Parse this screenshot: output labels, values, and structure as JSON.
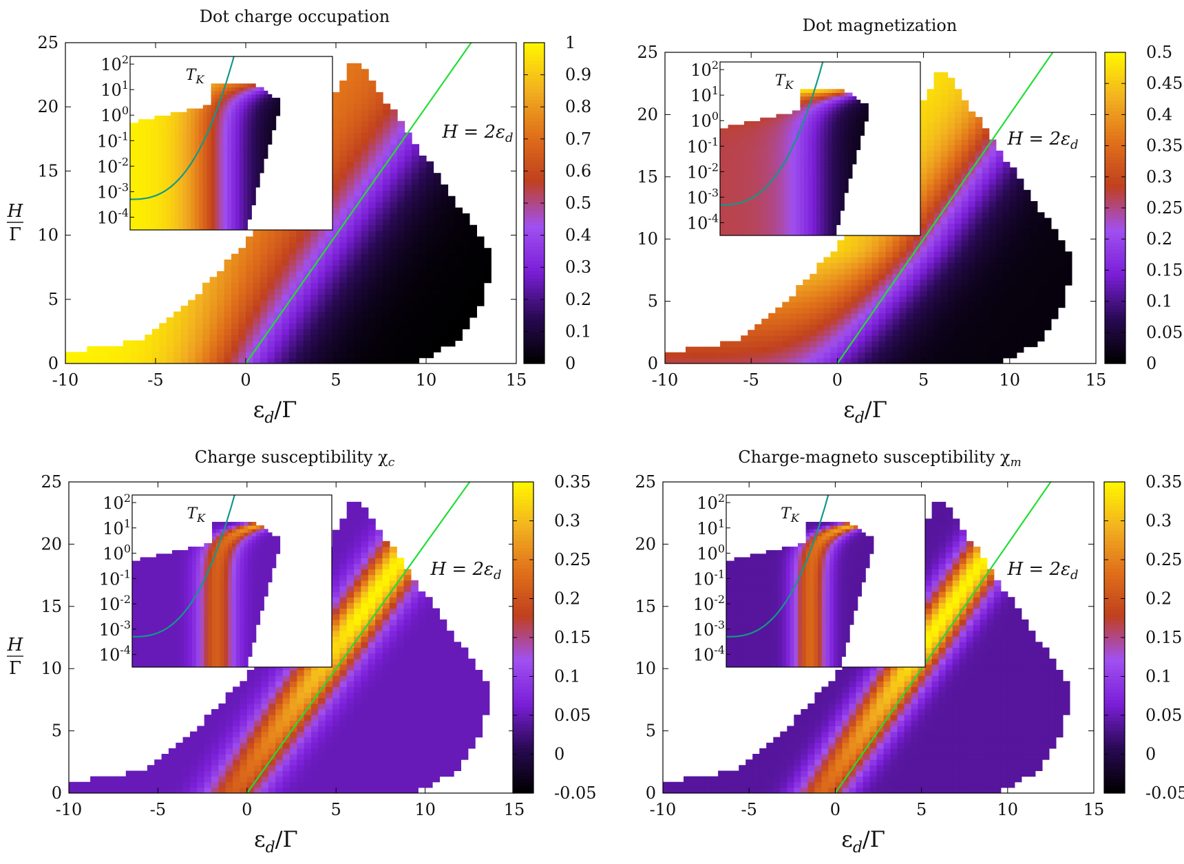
{
  "figure": {
    "colors": {
      "line_green": "#22dd33",
      "tk_teal": "#119988",
      "frame": "#000000"
    },
    "colormap": [
      "#000000",
      "#2a0a55",
      "#7b1fd8",
      "#a050f0",
      "#c0401e",
      "#e0701a",
      "#f2b020",
      "#fff400"
    ],
    "annotation_label": "H = 2ε",
    "annotation_subscript": "d",
    "inset_curve_label": "T",
    "inset_curve_subscript": "K"
  },
  "chart_data": [
    {
      "type": "heatmap",
      "title": "Dot charge occupation",
      "xlabel": "ε",
      "xlabel_sub": "d",
      "xlabel_tail": "/Γ",
      "ylabel_num": "H",
      "ylabel_den": "Γ",
      "xlim": [
        -10,
        15
      ],
      "ylim": [
        0,
        25
      ],
      "xticks": [
        "-10",
        "-5",
        "0",
        "5",
        "10",
        "15"
      ],
      "yticks": [
        "0",
        "5",
        "10",
        "15",
        "20",
        "25"
      ],
      "inset_yticks": [
        "10-4",
        "10-3",
        "10-2",
        "10-1",
        "100",
        "101",
        "102"
      ],
      "inset_ytick_base": "10",
      "inset_ytick_exps": [
        "-4",
        "-3",
        "-2",
        "-1",
        "0",
        "1",
        "2"
      ],
      "colorbar_ticks": [
        "0",
        "0.1",
        "0.2",
        "0.3",
        "0.4",
        "0.5",
        "0.6",
        "0.7",
        "0.8",
        "0.9",
        "1"
      ],
      "colorbar_range": [
        0,
        1
      ],
      "field": "occupation",
      "line": {
        "label": "H = 2ε_d",
        "x": [
          0,
          12.5
        ],
        "y": [
          0,
          25
        ]
      }
    },
    {
      "type": "heatmap",
      "title": "Dot magnetization",
      "xlabel": "ε",
      "xlabel_sub": "d",
      "xlabel_tail": "/Γ",
      "ylabel_num": "H",
      "ylabel_den": "Γ",
      "xlim": [
        -10,
        15
      ],
      "ylim": [
        0,
        25
      ],
      "xticks": [
        "-10",
        "-5",
        "0",
        "5",
        "10",
        "15"
      ],
      "yticks": [
        "0",
        "5",
        "10",
        "15",
        "20",
        "25"
      ],
      "inset_ytick_base": "10",
      "inset_ytick_exps": [
        "-4",
        "-3",
        "-2",
        "-1",
        "0",
        "1",
        "2"
      ],
      "colorbar_ticks": [
        "0",
        "0.05",
        "0.1",
        "0.15",
        "0.2",
        "0.25",
        "0.3",
        "0.35",
        "0.4",
        "0.45",
        "0.5"
      ],
      "colorbar_range": [
        0,
        0.5
      ],
      "field": "magnetization",
      "line": {
        "label": "H = 2ε_d",
        "x": [
          0,
          12.5
        ],
        "y": [
          0,
          25
        ]
      }
    },
    {
      "type": "heatmap",
      "title": "Charge susceptibility χ",
      "title_sub": "c",
      "xlabel": "ε",
      "xlabel_sub": "d",
      "xlabel_tail": "/Γ",
      "ylabel_num": "H",
      "ylabel_den": "Γ",
      "xlim": [
        -10,
        15
      ],
      "ylim": [
        0,
        25
      ],
      "xticks": [
        "-10",
        "-5",
        "0",
        "5",
        "10",
        "15"
      ],
      "yticks": [
        "0",
        "5",
        "10",
        "15",
        "20",
        "25"
      ],
      "inset_ytick_base": "10",
      "inset_ytick_exps": [
        "-4",
        "-3",
        "-2",
        "-1",
        "0",
        "1",
        "2"
      ],
      "colorbar_ticks": [
        "-0.05",
        "0",
        "0.05",
        "0.1",
        "0.15",
        "0.2",
        "0.25",
        "0.3",
        "0.35"
      ],
      "colorbar_range": [
        -0.05,
        0.35
      ],
      "field": "chi_c",
      "line": {
        "label": "H = 2ε_d",
        "x": [
          0,
          12.5
        ],
        "y": [
          0,
          25
        ]
      }
    },
    {
      "type": "heatmap",
      "title": "Charge-magneto susceptibility χ",
      "title_sub": "m",
      "xlabel": "ε",
      "xlabel_sub": "d",
      "xlabel_tail": "/Γ",
      "ylabel_num": "H",
      "ylabel_den": "Γ",
      "xlim": [
        -10,
        15
      ],
      "ylim": [
        0,
        25
      ],
      "xticks": [
        "-10",
        "-5",
        "0",
        "5",
        "10",
        "15"
      ],
      "yticks": [
        "0",
        "5",
        "10",
        "15",
        "20",
        "25"
      ],
      "inset_ytick_base": "10",
      "inset_ytick_exps": [
        "-4",
        "-3",
        "-2",
        "-1",
        "0",
        "1",
        "2"
      ],
      "colorbar_ticks": [
        "-0.05",
        "0",
        "0.05",
        "0.1",
        "0.15",
        "0.2",
        "0.25",
        "0.3",
        "0.35"
      ],
      "colorbar_range": [
        -0.05,
        0.35
      ],
      "field": "chi_m",
      "line": {
        "label": "H = 2ε_d",
        "x": [
          0,
          12.5
        ],
        "y": [
          0,
          25
        ]
      }
    }
  ]
}
